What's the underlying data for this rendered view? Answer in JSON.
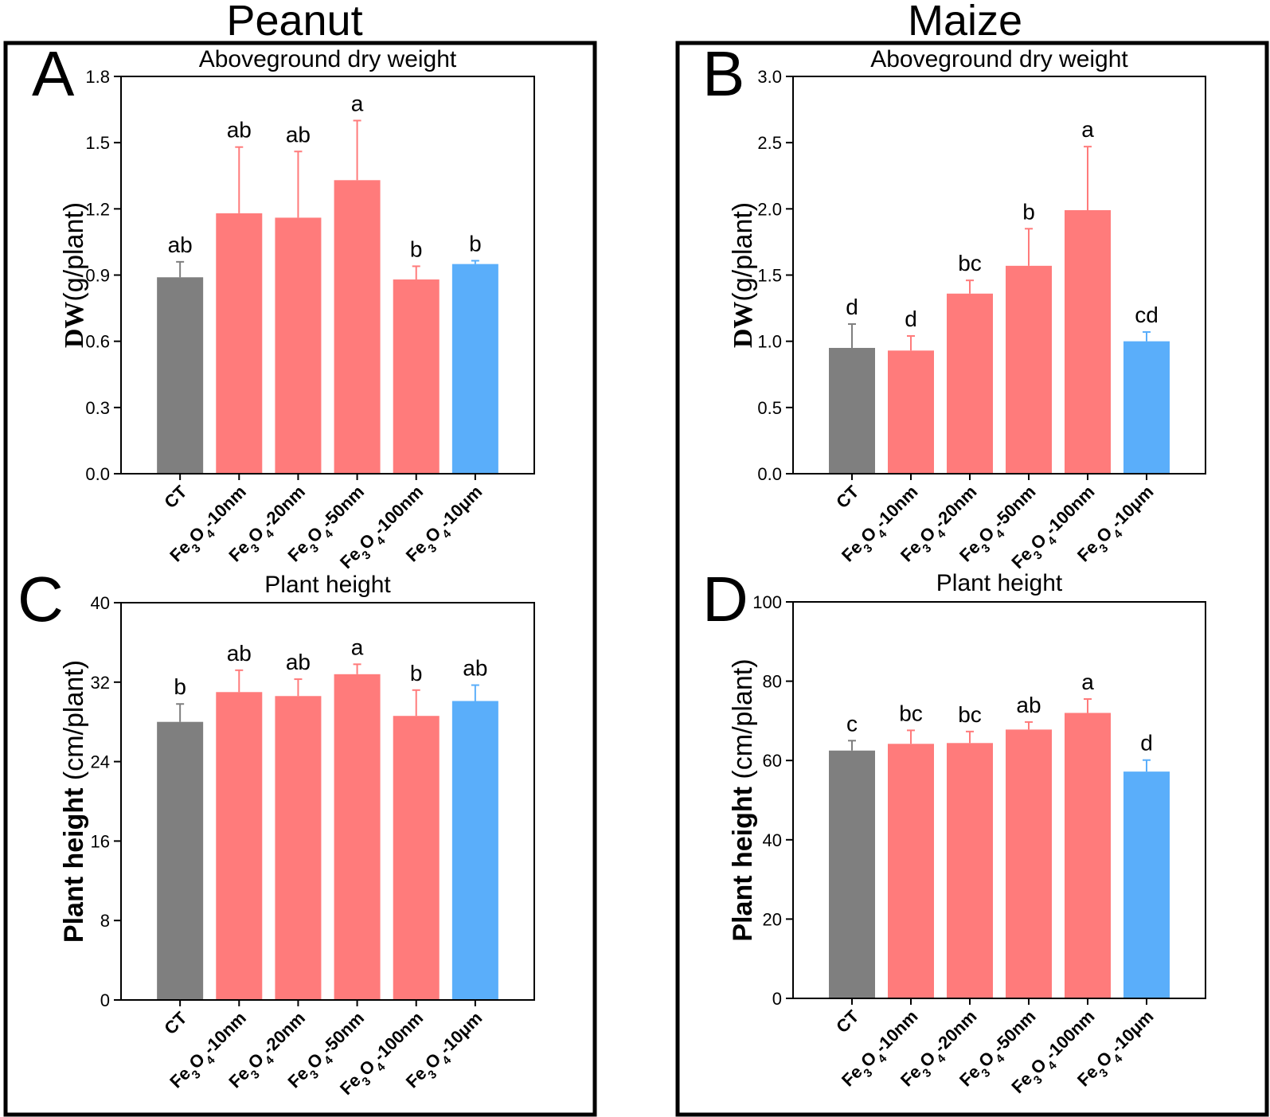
{
  "column_titles": [
    "Peanut",
    "Maize"
  ],
  "colors": {
    "control": "#7f7f7f",
    "nano": "#ff7b7b",
    "bulk": "#5aaefa",
    "frame": "#000000"
  },
  "chart_data": [
    {
      "panel": "A",
      "type": "bar",
      "title": "Aboveground dry weight",
      "ylabel_bold": "DW",
      "ylabel_rest": "(g/plant)",
      "ylim": [
        0,
        1.8
      ],
      "yticks": [
        "0.0",
        "0.3",
        "0.6",
        "0.9",
        "1.2",
        "1.5",
        "1.8"
      ],
      "categories": [
        [
          "CT"
        ],
        [
          "Fe",
          "3",
          "O",
          "4",
          "-10nm"
        ],
        [
          "Fe",
          "3",
          "O",
          "4",
          "-20nm"
        ],
        [
          "Fe",
          "3",
          "O",
          "4",
          "-50nm"
        ],
        [
          "Fe",
          "3",
          "O",
          "4",
          "-100nm"
        ],
        [
          "Fe",
          "3",
          "O",
          "4",
          "-10μm"
        ]
      ],
      "values": [
        0.89,
        1.18,
        1.16,
        1.33,
        0.88,
        0.95
      ],
      "errors": [
        0.07,
        0.3,
        0.3,
        0.27,
        0.06,
        0.015
      ],
      "letters": [
        "ab",
        "ab",
        "ab",
        "a",
        "b",
        "b"
      ]
    },
    {
      "panel": "B",
      "type": "bar",
      "title": "Aboveground dry weight",
      "ylabel_bold": "DW",
      "ylabel_rest": "(g/plant)",
      "ylim": [
        0,
        3.0
      ],
      "yticks": [
        "0.0",
        "0.5",
        "1.0",
        "1.5",
        "2.0",
        "2.5",
        "3.0"
      ],
      "categories": [
        [
          "CT"
        ],
        [
          "Fe",
          "3",
          "O",
          "4",
          "-10nm"
        ],
        [
          "Fe",
          "3",
          "O",
          "4",
          "-20nm"
        ],
        [
          "Fe",
          "3",
          "O",
          "4",
          "-50nm"
        ],
        [
          "Fe",
          "3",
          "O",
          "4",
          "-100nm"
        ],
        [
          "Fe",
          "3",
          "O",
          "4",
          "-10μm"
        ]
      ],
      "values": [
        0.95,
        0.93,
        1.36,
        1.57,
        1.99,
        1.0
      ],
      "errors": [
        0.18,
        0.11,
        0.1,
        0.28,
        0.48,
        0.07
      ],
      "letters": [
        "d",
        "d",
        "bc",
        "b",
        "a",
        "cd"
      ]
    },
    {
      "panel": "C",
      "type": "bar",
      "title": "Plant height",
      "ylabel_bold": "Plant height",
      "ylabel_rest": " (cm/plant)",
      "ylim": [
        0,
        40
      ],
      "yticks": [
        "0",
        "8",
        "16",
        "24",
        "32",
        "40"
      ],
      "categories": [
        [
          "CT"
        ],
        [
          "Fe",
          "3",
          "O",
          "4",
          "-10nm"
        ],
        [
          "Fe",
          "3",
          "O",
          "4",
          "-20nm"
        ],
        [
          "Fe",
          "3",
          "O",
          "4",
          "-50nm"
        ],
        [
          "Fe",
          "3",
          "O",
          "4",
          "-100nm"
        ],
        [
          "Fe",
          "3",
          "O",
          "4",
          "-10μm"
        ]
      ],
      "values": [
        28.0,
        31.0,
        30.6,
        32.8,
        28.6,
        30.1
      ],
      "errors": [
        1.8,
        2.2,
        1.7,
        1.0,
        2.6,
        1.6
      ],
      "letters": [
        "b",
        "ab",
        "ab",
        "a",
        "b",
        "ab"
      ]
    },
    {
      "panel": "D",
      "type": "bar",
      "title": "Plant height",
      "ylabel_bold": "Plant height",
      "ylabel_rest": " (cm/plant)",
      "ylim": [
        0,
        100
      ],
      "yticks": [
        "0",
        "20",
        "40",
        "60",
        "80",
        "100"
      ],
      "categories": [
        [
          "CT"
        ],
        [
          "Fe",
          "3",
          "O",
          "4",
          "-10nm"
        ],
        [
          "Fe",
          "3",
          "O",
          "4",
          "-20nm"
        ],
        [
          "Fe",
          "3",
          "O",
          "4",
          "-50nm"
        ],
        [
          "Fe",
          "3",
          "O",
          "4",
          "-100nm"
        ],
        [
          "Fe",
          "3",
          "O",
          "4",
          "-10μm"
        ]
      ],
      "values": [
        62.5,
        64.2,
        64.4,
        67.8,
        72.0,
        57.2
      ],
      "errors": [
        2.5,
        3.4,
        2.9,
        1.9,
        3.5,
        2.9
      ],
      "letters": [
        "c",
        "bc",
        "bc",
        "ab",
        "a",
        "d"
      ]
    }
  ]
}
